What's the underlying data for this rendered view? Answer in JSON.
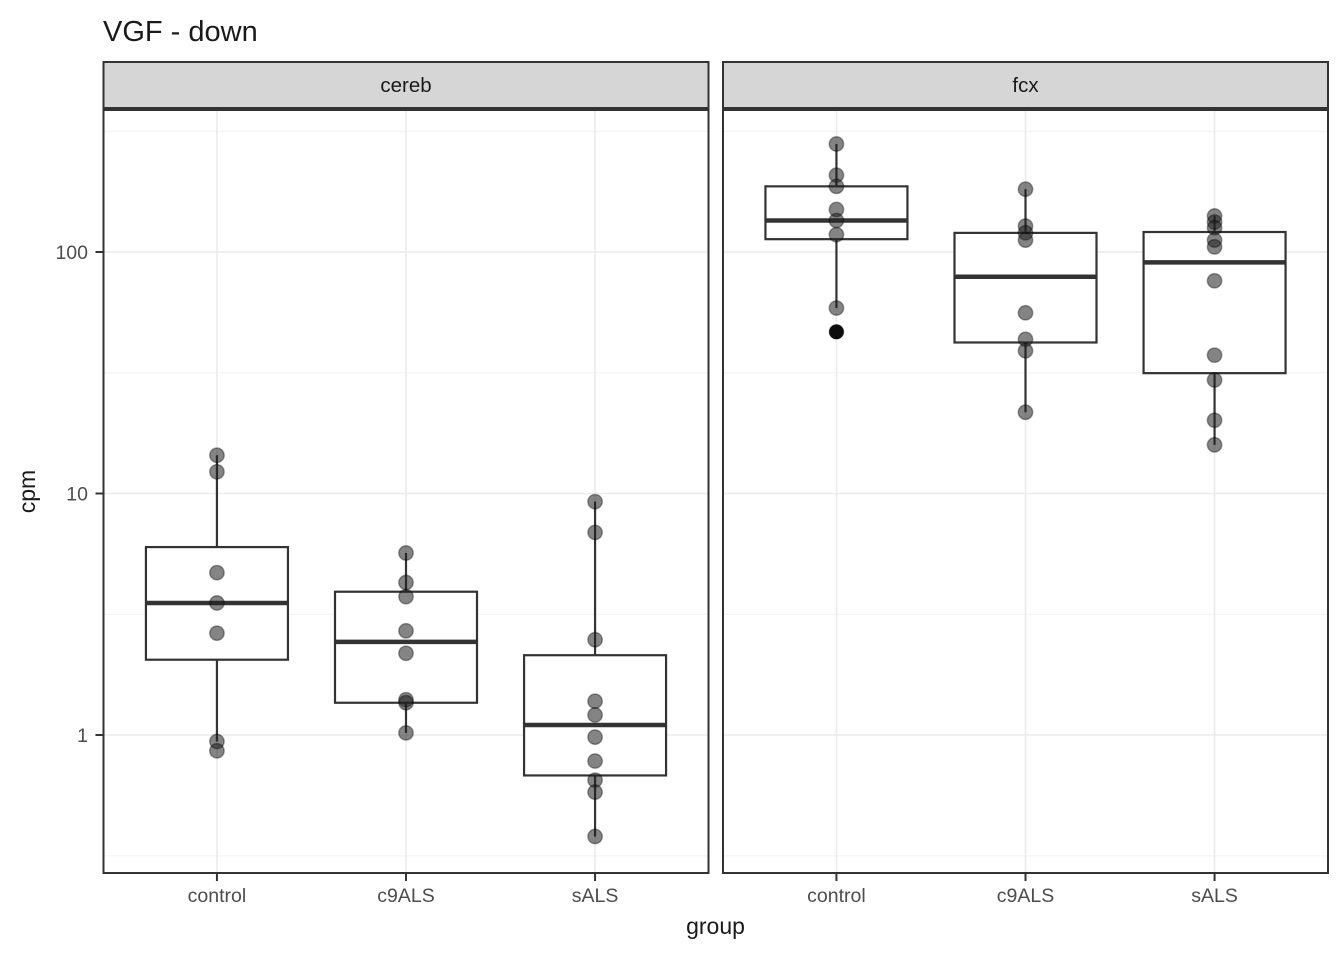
{
  "page": {
    "title": "VGF - down"
  },
  "chart_data": {
    "type": "boxplot",
    "title": "VGF - down",
    "xlabel": "group",
    "ylabel": "cpm",
    "y_scale": "log10",
    "y_tick_labels": [
      "100",
      "10",
      "1"
    ],
    "y_tick_values": [
      100,
      10,
      1
    ],
    "y_minor_values": [
      316,
      31.6,
      3.16,
      0.316
    ],
    "ylim": [
      0.27,
      390
    ],
    "grid": true,
    "legend": "none",
    "categories": [
      "control",
      "c9ALS",
      "sALS"
    ],
    "facets": [
      {
        "label": "cereb",
        "groups": [
          {
            "category": "control",
            "box": {
              "lower": 2.05,
              "median": 3.52,
              "upper": 6.0,
              "whisker_low": 0.94,
              "whisker_high": 14.4
            },
            "points": [
              14.4,
              12.3,
              4.7,
              3.52,
              2.64,
              0.94,
              0.86
            ],
            "outliers": []
          },
          {
            "category": "c9ALS",
            "box": {
              "lower": 1.36,
              "median": 2.43,
              "upper": 3.92,
              "whisker_low": 1.02,
              "whisker_high": 5.67
            },
            "points": [
              5.67,
              4.28,
              3.74,
              2.7,
              2.18,
              1.4,
              1.36,
              1.02
            ],
            "outliers": []
          },
          {
            "category": "sALS",
            "box": {
              "lower": 0.68,
              "median": 1.1,
              "upper": 2.14,
              "whisker_low": 0.38,
              "whisker_high": 9.25
            },
            "points": [
              9.25,
              6.9,
              2.48,
              1.38,
              1.21,
              0.98,
              0.78,
              0.65,
              0.58,
              0.38
            ],
            "outliers": []
          }
        ]
      },
      {
        "label": "fcx",
        "groups": [
          {
            "category": "control",
            "box": {
              "lower": 113,
              "median": 135,
              "upper": 187,
              "whisker_low": 58.6,
              "whisker_high": 280
            },
            "points": [
              280,
              208,
              187,
              150,
              135,
              118,
              58.6
            ],
            "outliers": [
              46.7
            ]
          },
          {
            "category": "c9ALS",
            "box": {
              "lower": 42.2,
              "median": 79,
              "upper": 120,
              "whisker_low": 21.7,
              "whisker_high": 182
            },
            "points": [
              182,
              128,
              120,
              112,
              56,
              43.5,
              39,
              21.7
            ],
            "outliers": []
          },
          {
            "category": "sALS",
            "box": {
              "lower": 31.5,
              "median": 90.6,
              "upper": 121,
              "whisker_low": 15.9,
              "whisker_high": 141
            },
            "points": [
              141,
              133,
              126,
              112,
              105,
              76,
              37.4,
              29.5,
              20.1,
              15.9
            ],
            "outliers": []
          }
        ]
      }
    ],
    "colors": {
      "strip_bg": "#d6d6d6",
      "border": "#333333",
      "grid_major": "#ebebeb",
      "grid_minor": "#f3f3f3",
      "box_fill": "#ffffff",
      "box_stroke": "#333333",
      "point_fill": "#1f1f1f",
      "outlier_fill": "#000000",
      "text": "#1a1a1a",
      "tick_text": "#4d4d4d"
    }
  }
}
